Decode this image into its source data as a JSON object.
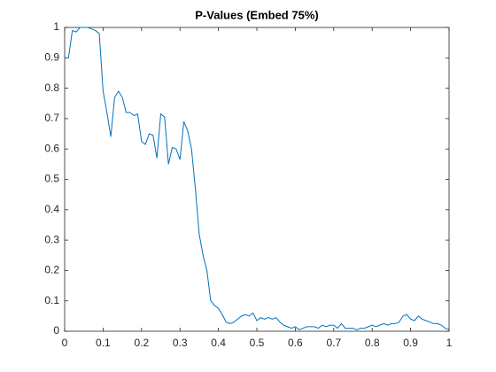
{
  "chart_data": {
    "type": "line",
    "title": "P-Values (Embed 75%)",
    "x": [
      0,
      0.01,
      0.02,
      0.03,
      0.04,
      0.05,
      0.06,
      0.07,
      0.08,
      0.09,
      0.1,
      0.11,
      0.12,
      0.13,
      0.14,
      0.15,
      0.16,
      0.17,
      0.18,
      0.19,
      0.2,
      0.21,
      0.22,
      0.23,
      0.24,
      0.25,
      0.26,
      0.27,
      0.28,
      0.29,
      0.3,
      0.31,
      0.32,
      0.33,
      0.34,
      0.35,
      0.36,
      0.37,
      0.38,
      0.39,
      0.4,
      0.41,
      0.42,
      0.43,
      0.44,
      0.45,
      0.46,
      0.47,
      0.48,
      0.49,
      0.5,
      0.51,
      0.52,
      0.53,
      0.54,
      0.55,
      0.56,
      0.57,
      0.58,
      0.59,
      0.6,
      0.61,
      0.62,
      0.63,
      0.64,
      0.65,
      0.66,
      0.67,
      0.68,
      0.69,
      0.7,
      0.71,
      0.72,
      0.73,
      0.74,
      0.75,
      0.76,
      0.77,
      0.78,
      0.79,
      0.8,
      0.81,
      0.82,
      0.83,
      0.84,
      0.85,
      0.86,
      0.87,
      0.88,
      0.89,
      0.9,
      0.91,
      0.92,
      0.93,
      0.94,
      0.95,
      0.96,
      0.97,
      0.98,
      0.99,
      1
    ],
    "series": [
      {
        "color": "#0072bd",
        "values": [
          0.9,
          0.9,
          0.99,
          0.985,
          1.0,
          1.0,
          1.0,
          0.995,
          0.99,
          0.98,
          0.79,
          0.72,
          0.64,
          0.77,
          0.79,
          0.77,
          0.72,
          0.72,
          0.71,
          0.715,
          0.625,
          0.615,
          0.65,
          0.645,
          0.57,
          0.715,
          0.705,
          0.55,
          0.605,
          0.6,
          0.565,
          0.69,
          0.66,
          0.6,
          0.47,
          0.32,
          0.25,
          0.2,
          0.1,
          0.085,
          0.075,
          0.055,
          0.03,
          0.025,
          0.03,
          0.04,
          0.05,
          0.055,
          0.05,
          0.06,
          0.035,
          0.045,
          0.04,
          0.045,
          0.04,
          0.045,
          0.03,
          0.02,
          0.015,
          0.01,
          0.015,
          0.005,
          0.01,
          0.015,
          0.015,
          0.015,
          0.01,
          0.02,
          0.015,
          0.02,
          0.02,
          0.01,
          0.025,
          0.01,
          0.01,
          0.01,
          0.005,
          0.01,
          0.01,
          0.015,
          0.02,
          0.015,
          0.02,
          0.025,
          0.02,
          0.025,
          0.025,
          0.03,
          0.05,
          0.055,
          0.04,
          0.035,
          0.05,
          0.04,
          0.035,
          0.03,
          0.025,
          0.025,
          0.02,
          0.01,
          0.005
        ]
      }
    ],
    "xlim": [
      0,
      1
    ],
    "xticks": [
      0,
      0.1,
      0.2,
      0.3,
      0.4,
      0.5,
      0.6,
      0.7,
      0.8,
      0.9,
      1
    ],
    "ylim": [
      0,
      1
    ],
    "yticks": [
      0,
      0.1,
      0.2,
      0.3,
      0.4,
      0.5,
      0.6,
      0.7,
      0.8,
      0.9,
      1
    ],
    "grid": false
  }
}
